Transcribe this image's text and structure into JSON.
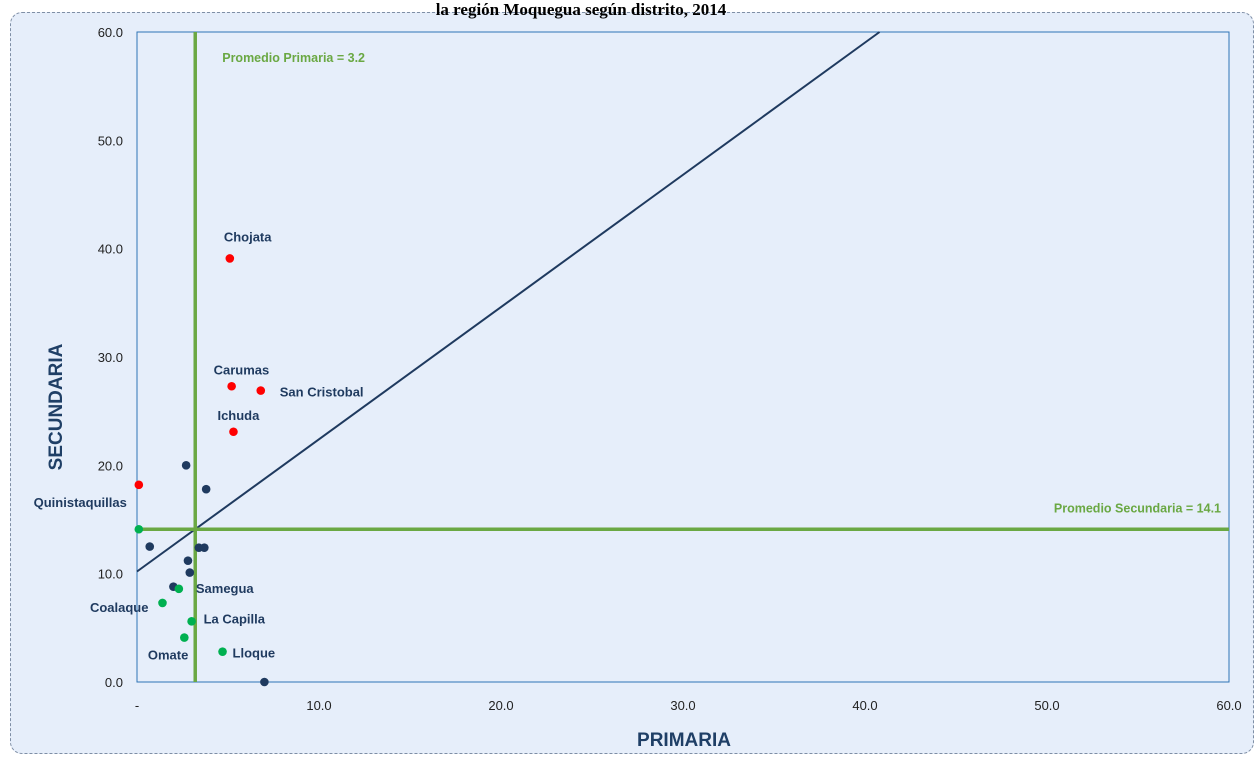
{
  "chart_data": {
    "type": "scatter",
    "title": "la región Moquegua según distrito, 2014",
    "xlabel": "PRIMARIA",
    "ylabel": "SECUNDARIA",
    "xlim": [
      0,
      60
    ],
    "ylim": [
      0,
      60
    ],
    "x_ticks": [
      "-",
      "10.0",
      "20.0",
      "30.0",
      "40.0",
      "50.0",
      "60.0"
    ],
    "y_ticks": [
      "0.0",
      "10.0",
      "20.0",
      "30.0",
      "40.0",
      "50.0",
      "60.0"
    ],
    "grid": false,
    "reference_lines": [
      {
        "axis": "x",
        "value": 3.2,
        "label": "Promedio Primaria = 3.2"
      },
      {
        "axis": "y",
        "value": 14.1,
        "label": "Promedio Secundaria = 14.1"
      }
    ],
    "trend_line": {
      "x": [
        0,
        40.8
      ],
      "y": [
        10.2,
        60
      ]
    },
    "points": [
      {
        "x": 5.1,
        "y": 39.1,
        "label": "Chojata",
        "group": "high"
      },
      {
        "x": 5.2,
        "y": 27.3,
        "label": "Carumas",
        "group": "high"
      },
      {
        "x": 6.8,
        "y": 26.9,
        "label": "San Cristobal",
        "group": "high"
      },
      {
        "x": 5.3,
        "y": 23.1,
        "label": "Ichuda",
        "group": "high"
      },
      {
        "x": 0.1,
        "y": 18.2,
        "label": "Quinistaquillas",
        "group": "high"
      },
      {
        "x": 2.7,
        "y": 20.0,
        "label": "",
        "group": "mid"
      },
      {
        "x": 3.8,
        "y": 17.8,
        "label": "",
        "group": "mid"
      },
      {
        "x": 0.7,
        "y": 12.5,
        "label": "",
        "group": "mid"
      },
      {
        "x": 3.4,
        "y": 12.4,
        "label": "",
        "group": "mid"
      },
      {
        "x": 3.7,
        "y": 12.4,
        "label": "",
        "group": "mid"
      },
      {
        "x": 2.8,
        "y": 11.2,
        "label": "",
        "group": "mid"
      },
      {
        "x": 2.9,
        "y": 10.1,
        "label": "",
        "group": "mid"
      },
      {
        "x": 2.0,
        "y": 8.8,
        "label": "",
        "group": "mid"
      },
      {
        "x": 7.0,
        "y": 0.0,
        "label": "",
        "group": "mid"
      },
      {
        "x": 0.1,
        "y": 14.1,
        "label": "",
        "group": "low"
      },
      {
        "x": 2.3,
        "y": 8.6,
        "label": "Samegua",
        "group": "low"
      },
      {
        "x": 1.4,
        "y": 7.3,
        "label": "Coalaque",
        "group": "low"
      },
      {
        "x": 3.0,
        "y": 5.6,
        "label": "La Capilla",
        "group": "low"
      },
      {
        "x": 2.6,
        "y": 4.1,
        "label": "Omate",
        "group": "low"
      },
      {
        "x": 4.7,
        "y": 2.8,
        "label": "Lloque",
        "group": "low"
      }
    ],
    "group_colors": {
      "high": "#ff0000",
      "mid": "#1f3a5f",
      "low": "#00b050"
    },
    "colors": {
      "reference": "#6aa843",
      "trend": "#1f3a5f",
      "plot_border": "#2e74b5"
    }
  }
}
